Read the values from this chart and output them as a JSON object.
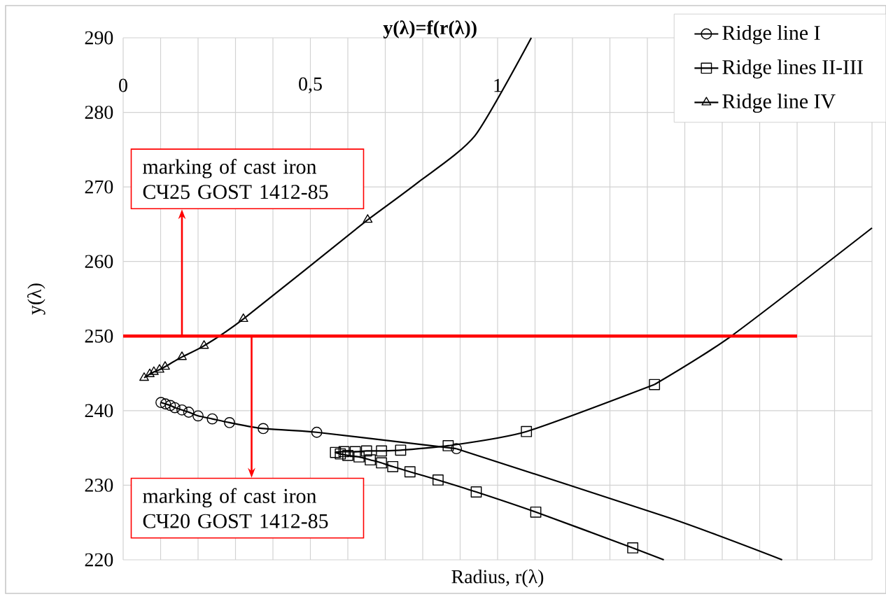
{
  "chart_data": {
    "type": "line",
    "title": "y(λ)=f(r(λ))",
    "xlabel": "Radius, r(λ)",
    "ylabel": "y(λ)",
    "xlim": [
      0,
      2.0
    ],
    "ylim": [
      220,
      290
    ],
    "xticks": [
      0,
      {
        "value": 0.1,
        "label": null
      },
      {
        "value": 0.2,
        "label": null
      },
      {
        "value": 0.3,
        "label": null
      },
      {
        "value": 0.4,
        "label": null
      },
      {
        "value": 0.5,
        "label": "0,5"
      },
      {
        "value": 0.6,
        "label": null
      },
      {
        "value": 0.7,
        "label": null
      },
      {
        "value": 0.8,
        "label": null
      },
      {
        "value": 0.9,
        "label": null
      },
      1,
      {
        "value": 1.1,
        "label": null
      },
      {
        "value": 1.2,
        "label": null
      },
      {
        "value": 1.3,
        "label": null
      },
      {
        "value": 1.4,
        "label": null
      },
      {
        "value": 1.5,
        "label": null
      },
      {
        "value": 1.6,
        "label": null
      },
      {
        "value": 1.7,
        "label": null
      },
      {
        "value": 1.8,
        "label": null
      },
      {
        "value": 1.9,
        "label": null
      },
      {
        "value": 2.0,
        "label": null
      }
    ],
    "yticks": [
      220,
      230,
      240,
      250,
      260,
      270,
      280,
      290
    ],
    "grid": true,
    "legend": "top right",
    "line_style": "solid",
    "series": [
      {
        "name": "Ridge line I",
        "color": "#000000",
        "marker": "circle",
        "x": [
          0.101,
          0.113,
          0.126,
          0.138,
          0.157,
          0.175,
          0.2,
          0.238,
          0.284,
          0.374,
          0.517,
          0.89
        ],
        "values": [
          241.1,
          240.9,
          240.7,
          240.4,
          240.1,
          239.8,
          239.3,
          238.9,
          238.4,
          237.6,
          237.1,
          234.9
        ]
      },
      {
        "name": "Ridge lines II-III",
        "color": "#000000",
        "marker": "square",
        "x": [
          1.361,
          1.102,
          0.943,
          0.841,
          0.766,
          0.72,
          0.69,
          0.66,
          0.63,
          0.6,
          0.58,
          0.567,
          0.59,
          0.62,
          0.65,
          0.69,
          0.741,
          0.868,
          1.077,
          1.419
        ],
        "values": [
          221.6,
          226.4,
          229.1,
          230.7,
          231.8,
          232.5,
          233.0,
          233.4,
          233.8,
          234.0,
          234.2,
          234.4,
          234.5,
          234.5,
          234.6,
          234.6,
          234.7,
          235.3,
          237.2,
          243.5
        ]
      },
      {
        "name": "Ridge line IV",
        "color": "#000000",
        "marker": "triangle",
        "x": [
          0.056,
          0.071,
          0.082,
          0.097,
          0.112,
          0.157,
          0.216,
          0.321,
          0.653
        ],
        "values": [
          244.4,
          244.9,
          245.2,
          245.5,
          245.9,
          247.2,
          248.7,
          252.3,
          265.6
        ]
      },
      {
        "color": "#000000",
        "marker": "none",
        "x": [
          0.653,
          0.79,
          0.94,
          1.09
        ],
        "values": [
          265.6,
          270.7,
          276.9,
          290
        ]
      },
      {
        "color": "#000000",
        "marker": "none",
        "x": [
          0.89,
          1.46,
          1.76
        ],
        "values": [
          234.9,
          225.6,
          220
        ]
      },
      {
        "color": "#000000",
        "marker": "none",
        "x": [
          1.419,
          1.624,
          2.0
        ],
        "values": [
          243.5,
          250.0,
          264.5
        ]
      },
      {
        "color": "#000000",
        "marker": "none",
        "x": [
          1.361,
          1.444
        ],
        "values": [
          221.6,
          220
        ]
      }
    ],
    "ref_lines": [
      {
        "axis": "y",
        "value": 250,
        "color": "#ff0000"
      }
    ],
    "annotations": [
      {
        "text": "marking of cast iron СЧ25 GOST 1412-85",
        "x": 0.157,
        "y": 250
      },
      {
        "text": "marking of cast iron СЧ20 GOST 1412-85",
        "x": 0.343,
        "y": 250
      }
    ]
  }
}
